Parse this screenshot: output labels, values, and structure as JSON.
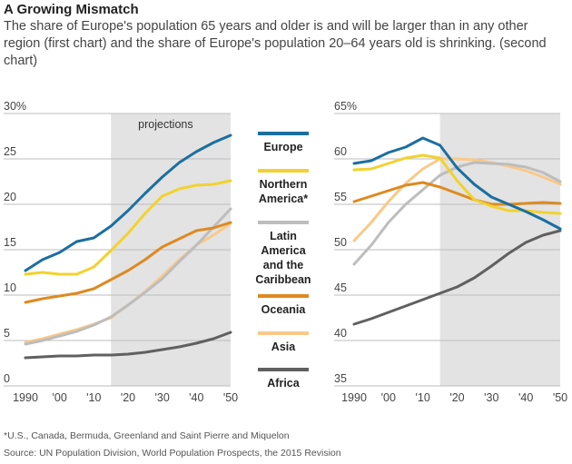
{
  "header": {
    "title": "A Growing Mismatch",
    "subtitle": "The share of Europe's population 65 years and older is and will be larger than in any other region (first chart) and the share of Europe's population 20–64 years old is shrinking. (second chart)"
  },
  "footnote": "*U.S., Canada, Bermuda, Greenland and Saint Pierre and Miquelon",
  "source": "Source: UN Population Division, World Population Prospects, the 2015 Revision",
  "colors": {
    "Europe": "#1b6fa0",
    "Northern America*": "#f2d22e",
    "Latin America and the Caribbean": "#bdbdbd",
    "Oceania": "#dd8a20",
    "Asia": "#f9c98a",
    "Africa": "#606060",
    "shade": "#e3e3e3",
    "grid": "#bdbdbd"
  },
  "legend": [
    {
      "name": "Europe",
      "lines": [
        "Europe"
      ]
    },
    {
      "name": "Northern America*",
      "lines": [
        "Northern",
        "America*"
      ]
    },
    {
      "name": "Latin America and the Caribbean",
      "lines": [
        "Latin",
        "America",
        "and the",
        "Caribbean"
      ]
    },
    {
      "name": "Oceania",
      "lines": [
        "Oceania"
      ]
    },
    {
      "name": "Asia",
      "lines": [
        "Asia"
      ]
    },
    {
      "name": "Africa",
      "lines": [
        "Africa"
      ]
    }
  ],
  "chart_data": [
    {
      "type": "line",
      "shaded_label": "projections",
      "shaded_range": [
        2015,
        2050
      ],
      "ylim": [
        0,
        30
      ],
      "yticks": [
        0,
        5,
        10,
        15,
        20,
        25,
        30
      ],
      "ytick_labels": [
        "0",
        "5",
        "10",
        "15",
        "20",
        "25",
        "30%"
      ],
      "xticks": [
        1990,
        2000,
        2010,
        2020,
        2030,
        2040,
        2050
      ],
      "xtick_labels": [
        "1990",
        "'00",
        "'10",
        "'20",
        "'30",
        "'40",
        "'50"
      ],
      "grid": true,
      "x": [
        1990,
        1995,
        2000,
        2005,
        2010,
        2015,
        2020,
        2025,
        2030,
        2035,
        2040,
        2045,
        2050
      ],
      "series": [
        {
          "name": "Europe",
          "values": [
            12.7,
            13.9,
            14.7,
            15.9,
            16.3,
            17.6,
            19.3,
            21.2,
            23.0,
            24.6,
            25.8,
            26.8,
            27.6
          ]
        },
        {
          "name": "Northern America*",
          "values": [
            12.3,
            12.5,
            12.3,
            12.3,
            13.1,
            14.9,
            16.8,
            19.0,
            20.9,
            21.7,
            22.1,
            22.2,
            22.6
          ]
        },
        {
          "name": "Latin America and the Caribbean",
          "values": [
            4.6,
            5.0,
            5.5,
            6.0,
            6.7,
            7.6,
            8.9,
            10.3,
            11.8,
            13.7,
            15.5,
            17.5,
            19.5
          ]
        },
        {
          "name": "Oceania",
          "values": [
            9.2,
            9.6,
            9.9,
            10.2,
            10.7,
            11.7,
            12.7,
            13.9,
            15.3,
            16.2,
            17.1,
            17.4,
            18.0
          ]
        },
        {
          "name": "Asia",
          "values": [
            4.8,
            5.2,
            5.7,
            6.2,
            6.8,
            7.5,
            8.9,
            10.4,
            12.1,
            13.9,
            15.5,
            16.6,
            17.9
          ]
        },
        {
          "name": "Africa",
          "values": [
            3.1,
            3.2,
            3.3,
            3.3,
            3.4,
            3.4,
            3.5,
            3.7,
            4.0,
            4.3,
            4.7,
            5.2,
            5.9
          ]
        }
      ]
    },
    {
      "type": "line",
      "shaded_range": [
        2015,
        2050
      ],
      "ylim": [
        35,
        65
      ],
      "yticks": [
        35,
        40,
        45,
        50,
        55,
        60,
        65
      ],
      "ytick_labels": [
        "35",
        "40",
        "45",
        "50",
        "55",
        "60",
        "65%"
      ],
      "xticks": [
        1990,
        2000,
        2010,
        2020,
        2030,
        2040,
        2050
      ],
      "xtick_labels": [
        "1990",
        "'00",
        "'10",
        "'20",
        "'30",
        "'40",
        "'50"
      ],
      "grid": true,
      "x": [
        1990,
        1995,
        2000,
        2005,
        2010,
        2015,
        2020,
        2025,
        2030,
        2035,
        2040,
        2045,
        2050
      ],
      "series": [
        {
          "name": "Europe",
          "values": [
            59.5,
            59.8,
            60.7,
            61.3,
            62.3,
            61.5,
            59.0,
            57.2,
            55.8,
            55.0,
            54.2,
            53.3,
            52.3
          ]
        },
        {
          "name": "Northern America*",
          "values": [
            58.8,
            58.9,
            59.5,
            60.1,
            60.4,
            60.1,
            57.6,
            55.5,
            54.8,
            54.3,
            54.3,
            54.1,
            54.0
          ]
        },
        {
          "name": "Latin America and the Caribbean",
          "values": [
            48.4,
            50.5,
            53.0,
            55.0,
            56.6,
            58.2,
            59.1,
            59.6,
            59.5,
            59.4,
            59.1,
            58.5,
            57.5
          ]
        },
        {
          "name": "Oceania",
          "values": [
            55.3,
            55.9,
            56.5,
            57.1,
            57.4,
            56.9,
            56.2,
            55.5,
            55.0,
            55.0,
            55.1,
            55.2,
            55.1
          ]
        },
        {
          "name": "Asia",
          "values": [
            51.0,
            53.0,
            55.3,
            57.3,
            58.9,
            60.0,
            60.0,
            59.9,
            59.6,
            59.2,
            58.7,
            58.0,
            57.2
          ]
        },
        {
          "name": "Africa",
          "values": [
            41.8,
            42.4,
            43.1,
            43.8,
            44.5,
            45.2,
            45.9,
            46.9,
            48.2,
            49.6,
            50.8,
            51.6,
            52.1
          ]
        }
      ]
    }
  ]
}
